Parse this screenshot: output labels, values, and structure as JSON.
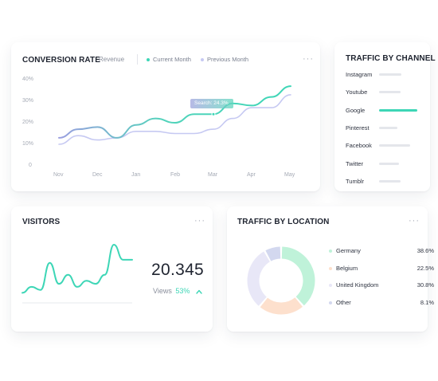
{
  "conversion": {
    "title": "CONVERSION RATE",
    "revenue_tab": "Revenue",
    "legend_current": "Current Month",
    "legend_previous": "Previous Month",
    "y_ticks": [
      "40%",
      "30%",
      "20%",
      "10%",
      "0"
    ],
    "x_ticks": [
      "Nov",
      "Dec",
      "Jan",
      "Feb",
      "Mar",
      "Apr",
      "May"
    ],
    "tooltip": "Search: 24.3%",
    "menu_label": "···"
  },
  "chart_data": {
    "type": "line",
    "title": "CONVERSION RATE",
    "categories": [
      "Nov",
      "Dec",
      "Jan",
      "Feb",
      "Mar",
      "Apr",
      "May"
    ],
    "ylim": [
      0,
      40
    ],
    "grid": false,
    "legend": "top",
    "series": [
      {
        "name": "Current Month",
        "color": "#3dd6b6",
        "x": [
          0,
          0.5,
          1,
          1.5,
          2,
          2.5,
          3,
          3.5,
          4,
          4.5,
          5,
          5.5,
          6
        ],
        "values": [
          13,
          17,
          18,
          13,
          19,
          22,
          20,
          24,
          24,
          29,
          28,
          32,
          37
        ]
      },
      {
        "name": "Previous Month",
        "color": "#c6c9f2",
        "x": [
          0,
          0.5,
          1,
          1.5,
          2,
          2.5,
          3,
          3.5,
          4,
          4.5,
          5,
          5.5,
          6
        ],
        "values": [
          10,
          14,
          12,
          13,
          16,
          16,
          15,
          15,
          17,
          22,
          27,
          27,
          33
        ]
      }
    ]
  },
  "channels": {
    "title": "TRAFFIC BY CHANNEL",
    "items": [
      {
        "label": "Instagram",
        "level": 0.58,
        "active": false
      },
      {
        "label": "Youtube",
        "level": 0.56,
        "active": false
      },
      {
        "label": "Google",
        "level": 1.0,
        "active": true
      },
      {
        "label": "Pinterest",
        "level": 0.48,
        "active": false
      },
      {
        "label": "Facebook",
        "level": 0.82,
        "active": false
      },
      {
        "label": "Twitter",
        "level": 0.52,
        "active": false
      },
      {
        "label": "Tumblr",
        "level": 0.56,
        "active": false
      }
    ]
  },
  "visitors": {
    "title": "VISITORS",
    "value": "20.345",
    "views_label": "Views",
    "views_pct": "53%",
    "trend_icon": "chevron-up-icon",
    "menu_label": "···",
    "sparkline": [
      2,
      4,
      3,
      12,
      5,
      8,
      4,
      6,
      5,
      8,
      18,
      13,
      13
    ]
  },
  "location": {
    "title": "TRAFFIC BY LOCATION",
    "menu_label": "···",
    "items": [
      {
        "label": "Germany",
        "value": "38.6%",
        "share": 38.6,
        "color": "#bff2d9"
      },
      {
        "label": "Belgium",
        "value": "22.5%",
        "share": 22.5,
        "color": "#fde0cd"
      },
      {
        "label": "United Kingdom",
        "value": "30.8%",
        "share": 30.8,
        "color": "#e8e7f7"
      },
      {
        "label": "Other",
        "value": "8.1%",
        "share": 8.1,
        "color": "#d3d8ef"
      }
    ]
  },
  "colors": {
    "accent": "#3dd6b6",
    "previous": "#c6c9f2"
  }
}
